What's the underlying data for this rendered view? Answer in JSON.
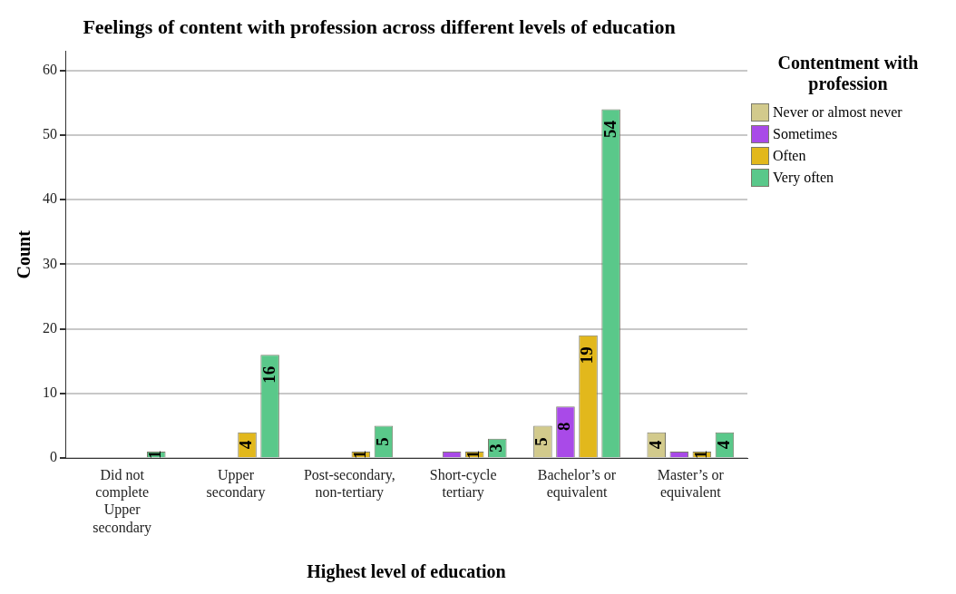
{
  "chart_data": {
    "type": "bar",
    "title": "Feelings of content with profession across different levels of education",
    "xlabel": "Highest level of education",
    "ylabel": "Count",
    "legend_title": "Contentment with profession",
    "categories": [
      "Did not complete Upper secondary",
      "Upper secondary",
      "Post-secondary, non-tertiary",
      "Short-cycle tertiary",
      "Bachelor’s or equivalent",
      "Master’s or equivalent"
    ],
    "series": [
      {
        "name": "Never or almost never",
        "color": "#d2ca8c",
        "values": [
          null,
          null,
          null,
          null,
          5,
          4
        ],
        "value_labels": [
          null,
          null,
          null,
          null,
          "5",
          "4"
        ]
      },
      {
        "name": "Sometimes",
        "color": "#a94ae8",
        "values": [
          null,
          null,
          null,
          1,
          8,
          1
        ],
        "value_labels": [
          null,
          null,
          null,
          null,
          "8",
          null
        ]
      },
      {
        "name": "Often",
        "color": "#e2b81c",
        "values": [
          null,
          4,
          1,
          1,
          19,
          1
        ],
        "value_labels": [
          null,
          "4",
          "1",
          "1",
          "19",
          "1"
        ]
      },
      {
        "name": "Very often",
        "color": "#5ac88a",
        "values": [
          1,
          16,
          5,
          3,
          54,
          4
        ],
        "value_labels": [
          "1",
          "16",
          "5",
          "3",
          "54",
          "4"
        ]
      }
    ],
    "ylim": [
      0,
      63
    ],
    "yticks": [
      0,
      10,
      20,
      30,
      40,
      50,
      60
    ],
    "grid": "y",
    "legend": "right"
  }
}
